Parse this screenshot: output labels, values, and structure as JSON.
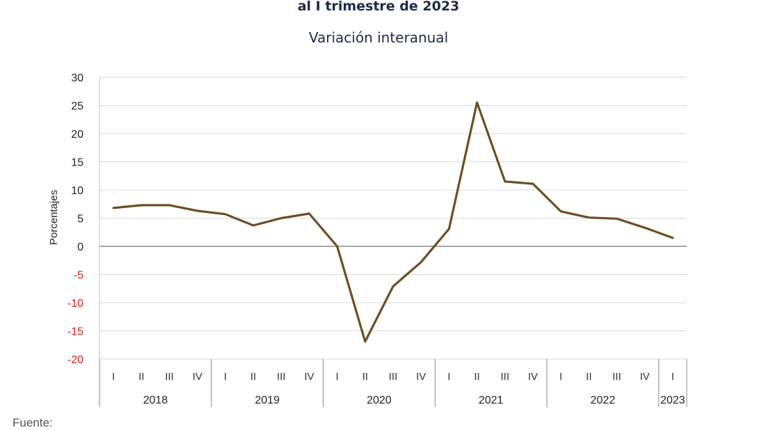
{
  "chart_data": {
    "type": "line",
    "title": "al I trimestre de 2023",
    "subtitle": "Variación interanual",
    "ylabel": "Porcentajes",
    "xlabel": "",
    "ylim": [
      -20,
      30
    ],
    "yticks": [
      30,
      25,
      20,
      15,
      10,
      5,
      0,
      -5,
      -10,
      -15,
      -20
    ],
    "negative_tick_color": "#d42020",
    "positive_tick_color": "#222222",
    "grid": true,
    "line_color": "#6b4f24",
    "years": [
      {
        "label": "2018",
        "quarters": [
          "I",
          "II",
          "III",
          "IV"
        ]
      },
      {
        "label": "2019",
        "quarters": [
          "I",
          "II",
          "III",
          "IV"
        ]
      },
      {
        "label": "2020",
        "quarters": [
          "I",
          "II",
          "III",
          "IV"
        ]
      },
      {
        "label": "2021",
        "quarters": [
          "I",
          "II",
          "III",
          "IV"
        ]
      },
      {
        "label": "2022",
        "quarters": [
          "I",
          "II",
          "III",
          "IV"
        ]
      },
      {
        "label": "2023",
        "quarters": [
          "I"
        ]
      }
    ],
    "values": [
      6.8,
      7.3,
      7.3,
      6.3,
      5.7,
      3.7,
      5.0,
      5.8,
      0.0,
      -16.9,
      -7.1,
      -2.8,
      3.1,
      25.5,
      11.5,
      11.1,
      6.2,
      5.1,
      4.9,
      3.3,
      1.5
    ]
  },
  "source_note": "Fuente:"
}
